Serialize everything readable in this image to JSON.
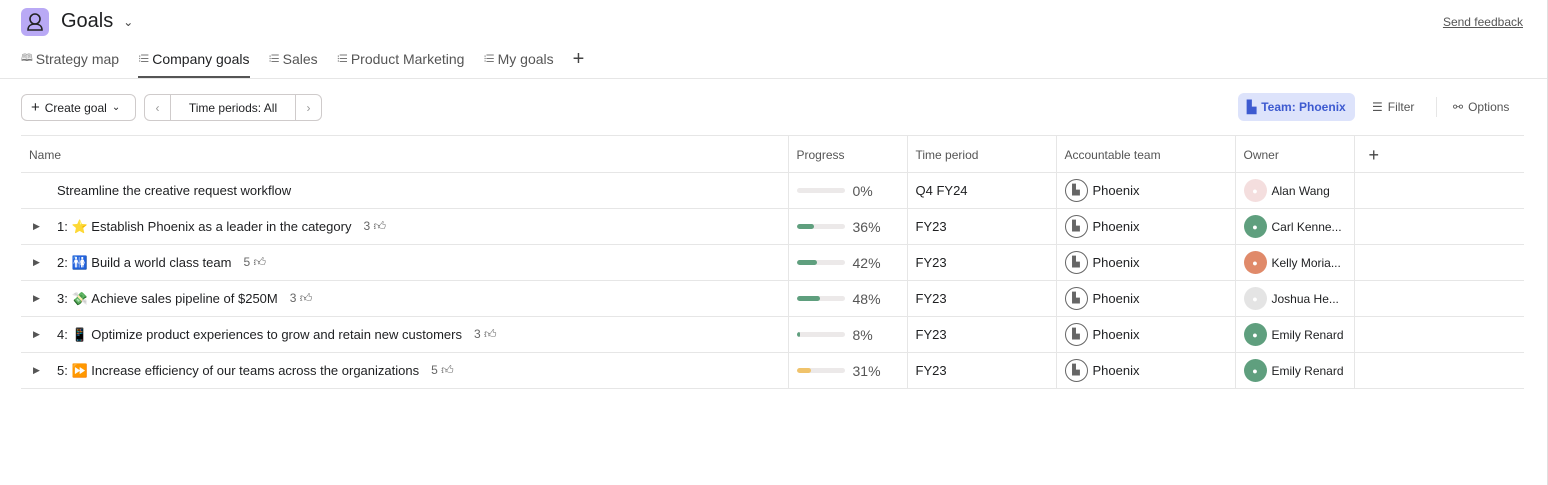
{
  "header": {
    "title": "Goals",
    "send_feedback": "Send feedback"
  },
  "tabs": [
    {
      "label": "Strategy map",
      "icon": "map-icon"
    },
    {
      "label": "Company goals",
      "icon": "list-icon",
      "active": true
    },
    {
      "label": "Sales",
      "icon": "list-icon"
    },
    {
      "label": "Product Marketing",
      "icon": "list-icon"
    },
    {
      "label": "My goals",
      "icon": "list-icon"
    }
  ],
  "toolbar": {
    "create_goal": "Create goal",
    "time_periods": "Time periods: All",
    "team_filter": "Team: Phoenix",
    "filter": "Filter",
    "options": "Options"
  },
  "columns": [
    "Name",
    "Progress",
    "Time period",
    "Accountable team",
    "Owner"
  ],
  "colors": {
    "progress_green": "#5f9f7e",
    "progress_yellow": "#f0c36b",
    "team_chip_bg": "#dde3fb",
    "team_chip_text": "#3d5ad0"
  },
  "rows": [
    {
      "prefix": "",
      "emoji": "",
      "name": "Streamline the creative request workflow",
      "likes": "",
      "progress": 0,
      "progress_label": "0%",
      "color": "#5f9f7e",
      "time_period": "Q4 FY24",
      "team": "Phoenix",
      "owner": "Alan Wang",
      "avatar_color": "#f4dede",
      "expandable": false
    },
    {
      "prefix": "1:",
      "emoji": "⭐",
      "name": "Establish Phoenix as a leader in the category",
      "likes": "3",
      "progress": 36,
      "progress_label": "36%",
      "color": "#5f9f7e",
      "time_period": "FY23",
      "team": "Phoenix",
      "owner": "Carl Kenne...",
      "avatar_color": "#5f9f7e",
      "expandable": true
    },
    {
      "prefix": "2:",
      "emoji": "🚻",
      "name": "Build a world class team",
      "likes": "5",
      "progress": 42,
      "progress_label": "42%",
      "color": "#5f9f7e",
      "time_period": "FY23",
      "team": "Phoenix",
      "owner": "Kelly Moria...",
      "avatar_color": "#e08a6a",
      "expandable": true
    },
    {
      "prefix": "3:",
      "emoji": "💸",
      "name": "Achieve sales pipeline of $250M",
      "likes": "3",
      "progress": 48,
      "progress_label": "48%",
      "color": "#5f9f7e",
      "time_period": "FY23",
      "team": "Phoenix",
      "owner": "Joshua He...",
      "avatar_color": "#e4e4e4",
      "expandable": true
    },
    {
      "prefix": "4:",
      "emoji": "📱",
      "name": "Optimize product experiences to grow and retain new customers",
      "likes": "3",
      "progress": 8,
      "progress_label": "8%",
      "color": "#5f9f7e",
      "time_period": "FY23",
      "team": "Phoenix",
      "owner": "Emily Renard",
      "avatar_color": "#5f9f7e",
      "expandable": true
    },
    {
      "prefix": "5:",
      "emoji": "⏩",
      "name": "Increase efficiency of our teams across the organizations",
      "likes": "5",
      "progress": 31,
      "progress_label": "31%",
      "color": "#f0c36b",
      "time_period": "FY23",
      "team": "Phoenix",
      "owner": "Emily Renard",
      "avatar_color": "#5f9f7e",
      "expandable": true
    }
  ]
}
